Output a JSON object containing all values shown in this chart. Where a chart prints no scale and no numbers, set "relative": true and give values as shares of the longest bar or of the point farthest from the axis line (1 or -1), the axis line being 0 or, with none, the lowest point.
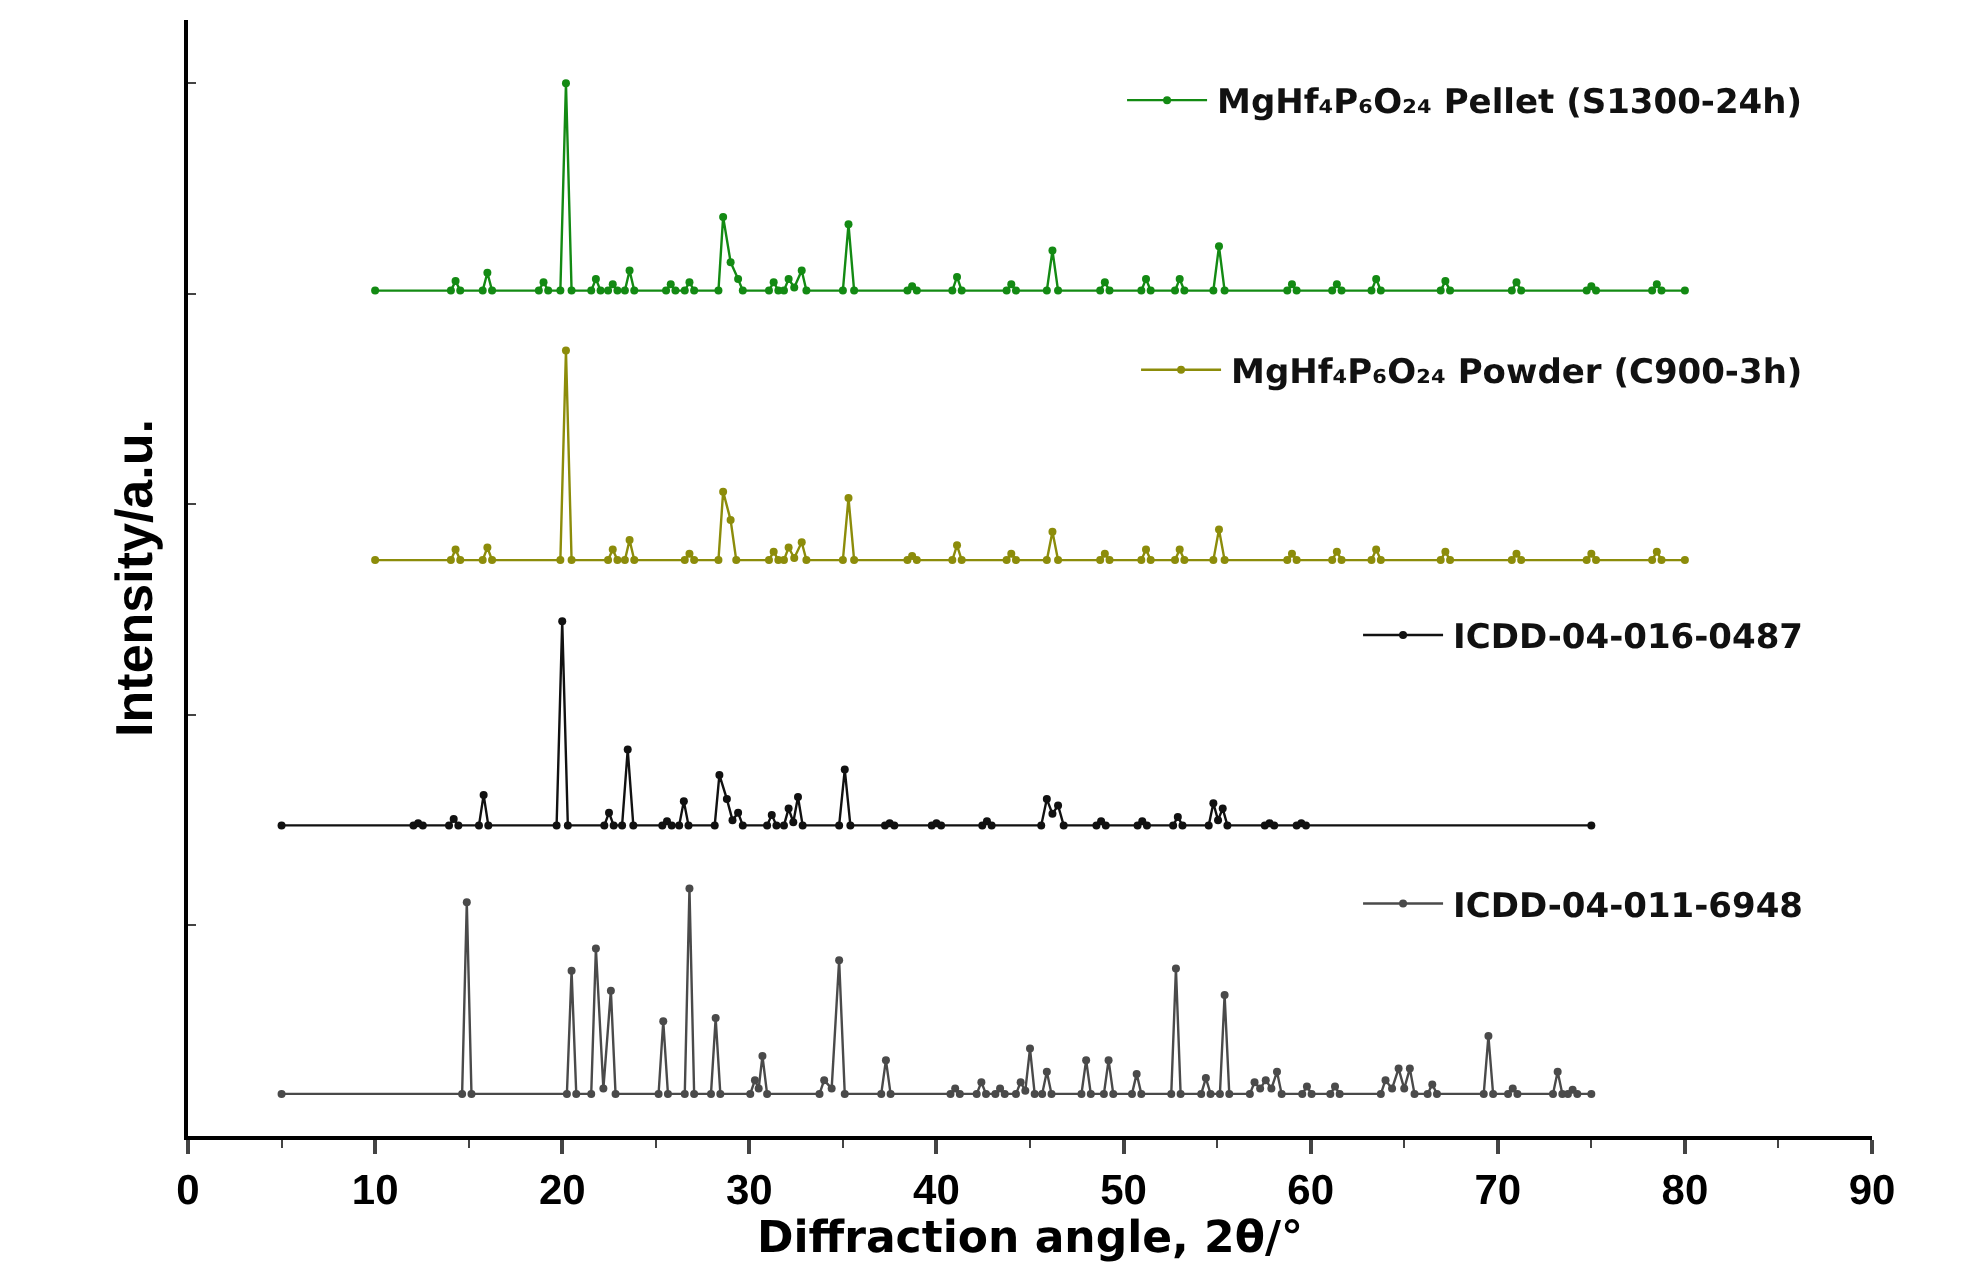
{
  "chart_data": {
    "type": "line",
    "relative": true,
    "xlabel": "Diffraction angle, 2θ/°",
    "ylabel": "Intensity/a.u.",
    "xlim": [
      0,
      90
    ],
    "xticks": [
      0,
      10,
      20,
      30,
      40,
      50,
      60,
      70,
      80,
      90
    ],
    "grid": false,
    "legend": "right",
    "marker": "circle",
    "line_style": "solid",
    "tick_labels": "x",
    "series": [
      {
        "name": "MgHf₄P₆O₂₄ Pellet (S1300-24h)",
        "color": "#138a13",
        "x": [
          10,
          14.05,
          14.3,
          14.55,
          15.75,
          16,
          16.25,
          18.75,
          19,
          19.25,
          19.9,
          20.2,
          20.5,
          21.55,
          21.8,
          22.05,
          22.45,
          22.7,
          22.95,
          23.35,
          23.6,
          23.85,
          25.55,
          25.8,
          26.05,
          26.55,
          26.8,
          27.05,
          28.35,
          28.6,
          29.0,
          29.4,
          29.65,
          31.05,
          31.3,
          31.55,
          31.85,
          32.1,
          32.4,
          32.8,
          33.05,
          35.0,
          35.3,
          35.6,
          38.45,
          38.7,
          38.95,
          40.85,
          41.1,
          41.35,
          43.75,
          44,
          44.25,
          45.9,
          46.2,
          46.5,
          48.75,
          49,
          49.25,
          50.95,
          51.2,
          51.45,
          52.75,
          53,
          53.25,
          54.8,
          55.1,
          55.4,
          58.75,
          59,
          59.25,
          61.15,
          61.4,
          61.65,
          63.25,
          63.5,
          63.75,
          66.95,
          67.2,
          67.45,
          70.75,
          71,
          71.25,
          74.75,
          75,
          75.25,
          78.25,
          78.5,
          78.75,
          80
        ],
        "values": [
          0.803,
          0.803,
          0.812,
          0.803,
          0.803,
          0.82,
          0.803,
          0.803,
          0.811,
          0.803,
          0.803,
          1.0,
          0.803,
          0.803,
          0.814,
          0.803,
          0.803,
          0.809,
          0.803,
          0.803,
          0.822,
          0.803,
          0.803,
          0.809,
          0.803,
          0.803,
          0.811,
          0.803,
          0.803,
          0.873,
          0.83,
          0.814,
          0.803,
          0.803,
          0.811,
          0.803,
          0.803,
          0.814,
          0.806,
          0.822,
          0.803,
          0.803,
          0.866,
          0.803,
          0.803,
          0.807,
          0.803,
          0.803,
          0.816,
          0.803,
          0.803,
          0.809,
          0.803,
          0.803,
          0.841,
          0.803,
          0.803,
          0.811,
          0.803,
          0.803,
          0.814,
          0.803,
          0.803,
          0.814,
          0.803,
          0.803,
          0.845,
          0.803,
          0.803,
          0.809,
          0.803,
          0.803,
          0.809,
          0.803,
          0.803,
          0.814,
          0.803,
          0.803,
          0.812,
          0.803,
          0.803,
          0.811,
          0.803,
          0.803,
          0.807,
          0.803,
          0.803,
          0.809,
          0.803,
          0.803
        ]
      },
      {
        "name": "MgHf₄P₆O₂₄ Powder (C900-3h)",
        "color": "#8c8c0a",
        "x": [
          10,
          14.05,
          14.3,
          14.55,
          15.75,
          16,
          16.25,
          19.9,
          20.2,
          20.5,
          22.45,
          22.7,
          22.95,
          23.35,
          23.6,
          23.85,
          26.55,
          26.8,
          27.05,
          28.35,
          28.6,
          29.0,
          29.3,
          31.05,
          31.3,
          31.55,
          31.85,
          32.1,
          32.4,
          32.8,
          33.05,
          35.0,
          35.3,
          35.6,
          38.45,
          38.7,
          38.95,
          40.85,
          41.1,
          41.35,
          43.75,
          44,
          44.25,
          45.9,
          46.2,
          46.5,
          48.75,
          49,
          49.25,
          50.95,
          51.2,
          51.45,
          52.75,
          53,
          53.25,
          54.8,
          55.1,
          55.4,
          58.75,
          59,
          59.25,
          61.15,
          61.4,
          61.65,
          63.25,
          63.5,
          63.75,
          66.95,
          67.2,
          67.45,
          70.75,
          71,
          71.25,
          74.75,
          75,
          75.25,
          78.25,
          78.5,
          78.75,
          80
        ],
        "values": [
          0.547,
          0.547,
          0.557,
          0.547,
          0.547,
          0.559,
          0.547,
          0.547,
          0.746,
          0.547,
          0.547,
          0.557,
          0.547,
          0.547,
          0.566,
          0.547,
          0.547,
          0.553,
          0.547,
          0.547,
          0.612,
          0.585,
          0.547,
          0.547,
          0.555,
          0.547,
          0.547,
          0.559,
          0.549,
          0.564,
          0.547,
          0.547,
          0.606,
          0.547,
          0.547,
          0.551,
          0.547,
          0.547,
          0.561,
          0.547,
          0.547,
          0.553,
          0.547,
          0.547,
          0.574,
          0.547,
          0.547,
          0.553,
          0.547,
          0.547,
          0.557,
          0.547,
          0.547,
          0.557,
          0.547,
          0.547,
          0.576,
          0.547,
          0.547,
          0.553,
          0.547,
          0.547,
          0.555,
          0.547,
          0.547,
          0.557,
          0.547,
          0.547,
          0.555,
          0.547,
          0.547,
          0.553,
          0.547,
          0.547,
          0.553,
          0.547,
          0.547,
          0.555,
          0.547,
          0.547
        ]
      },
      {
        "name": "ICDD-04-016-0487",
        "color": "#111111",
        "x": [
          5,
          12.05,
          12.3,
          12.55,
          13.95,
          14.2,
          14.45,
          15.55,
          15.8,
          16.05,
          19.7,
          20.0,
          20.3,
          22.25,
          22.5,
          22.75,
          23.2,
          23.5,
          23.8,
          25.35,
          25.6,
          25.85,
          26.25,
          26.5,
          26.75,
          28.15,
          28.4,
          28.8,
          29.1,
          29.4,
          29.65,
          30.95,
          31.2,
          31.45,
          31.85,
          32.1,
          32.35,
          32.6,
          32.85,
          34.8,
          35.1,
          35.4,
          37.25,
          37.5,
          37.75,
          39.75,
          40,
          40.25,
          42.45,
          42.7,
          42.95,
          45.6,
          45.9,
          46.2,
          46.5,
          46.8,
          48.55,
          48.8,
          49.05,
          50.75,
          51,
          51.25,
          52.65,
          52.9,
          53.15,
          54.55,
          54.8,
          55.05,
          55.3,
          55.55,
          57.55,
          57.8,
          58.05,
          59.25,
          59.5,
          59.75,
          75
        ],
        "values": [
          0.295,
          0.295,
          0.297,
          0.295,
          0.295,
          0.301,
          0.295,
          0.295,
          0.324,
          0.295,
          0.295,
          0.489,
          0.295,
          0.295,
          0.307,
          0.295,
          0.295,
          0.367,
          0.295,
          0.295,
          0.299,
          0.295,
          0.295,
          0.318,
          0.295,
          0.295,
          0.343,
          0.32,
          0.3,
          0.307,
          0.295,
          0.295,
          0.305,
          0.295,
          0.295,
          0.311,
          0.298,
          0.322,
          0.295,
          0.295,
          0.348,
          0.295,
          0.295,
          0.297,
          0.295,
          0.295,
          0.297,
          0.295,
          0.295,
          0.299,
          0.295,
          0.295,
          0.32,
          0.306,
          0.314,
          0.295,
          0.295,
          0.299,
          0.295,
          0.295,
          0.299,
          0.295,
          0.295,
          0.303,
          0.295,
          0.295,
          0.316,
          0.3,
          0.311,
          0.295,
          0.295,
          0.297,
          0.295,
          0.295,
          0.297,
          0.295,
          0.295
        ]
      },
      {
        "name": "ICDD-04-011-6948",
        "color": "#4a4a4a",
        "x": [
          5,
          14.65,
          14.9,
          15.15,
          20.25,
          20.5,
          20.75,
          21.55,
          21.8,
          22.2,
          22.6,
          22.85,
          25.15,
          25.4,
          25.65,
          26.55,
          26.8,
          27.05,
          27.95,
          28.2,
          28.45,
          30.05,
          30.3,
          30.5,
          30.7,
          30.95,
          33.75,
          34.0,
          34.4,
          34.8,
          35.1,
          37.05,
          37.3,
          37.55,
          40.75,
          41,
          41.25,
          42.15,
          42.4,
          42.65,
          43.15,
          43.4,
          43.65,
          44.25,
          44.5,
          44.75,
          45.0,
          45.25,
          45.65,
          45.9,
          46.15,
          47.75,
          48,
          48.25,
          48.95,
          49.2,
          49.45,
          50.45,
          50.7,
          50.95,
          52.55,
          52.8,
          53.05,
          54.15,
          54.4,
          54.65,
          55.15,
          55.4,
          55.65,
          56.75,
          57.0,
          57.3,
          57.6,
          57.9,
          58.2,
          58.45,
          59.55,
          59.8,
          60.05,
          61.05,
          61.3,
          61.55,
          63.75,
          64.0,
          64.35,
          64.7,
          65.0,
          65.3,
          65.55,
          66.25,
          66.5,
          66.75,
          69.25,
          69.5,
          69.75,
          70.55,
          70.8,
          71.05,
          72.95,
          73.2,
          73.45,
          73.75,
          74.0,
          74.25,
          75
        ],
        "values": [
          0.04,
          0.04,
          0.222,
          0.04,
          0.04,
          0.157,
          0.04,
          0.04,
          0.178,
          0.045,
          0.138,
          0.04,
          0.04,
          0.109,
          0.04,
          0.04,
          0.235,
          0.04,
          0.04,
          0.112,
          0.04,
          0.04,
          0.053,
          0.045,
          0.076,
          0.04,
          0.04,
          0.053,
          0.045,
          0.167,
          0.04,
          0.04,
          0.072,
          0.04,
          0.04,
          0.045,
          0.04,
          0.04,
          0.051,
          0.04,
          0.04,
          0.045,
          0.04,
          0.04,
          0.051,
          0.043,
          0.083,
          0.04,
          0.04,
          0.061,
          0.04,
          0.04,
          0.072,
          0.04,
          0.04,
          0.072,
          0.04,
          0.04,
          0.059,
          0.04,
          0.04,
          0.159,
          0.04,
          0.04,
          0.055,
          0.04,
          0.04,
          0.134,
          0.04,
          0.04,
          0.051,
          0.045,
          0.053,
          0.045,
          0.061,
          0.04,
          0.04,
          0.047,
          0.04,
          0.04,
          0.047,
          0.04,
          0.04,
          0.053,
          0.045,
          0.064,
          0.045,
          0.064,
          0.04,
          0.04,
          0.049,
          0.04,
          0.04,
          0.095,
          0.04,
          0.04,
          0.045,
          0.04,
          0.04,
          0.061,
          0.04,
          0.04,
          0.044,
          0.04,
          0.04
        ]
      }
    ]
  }
}
